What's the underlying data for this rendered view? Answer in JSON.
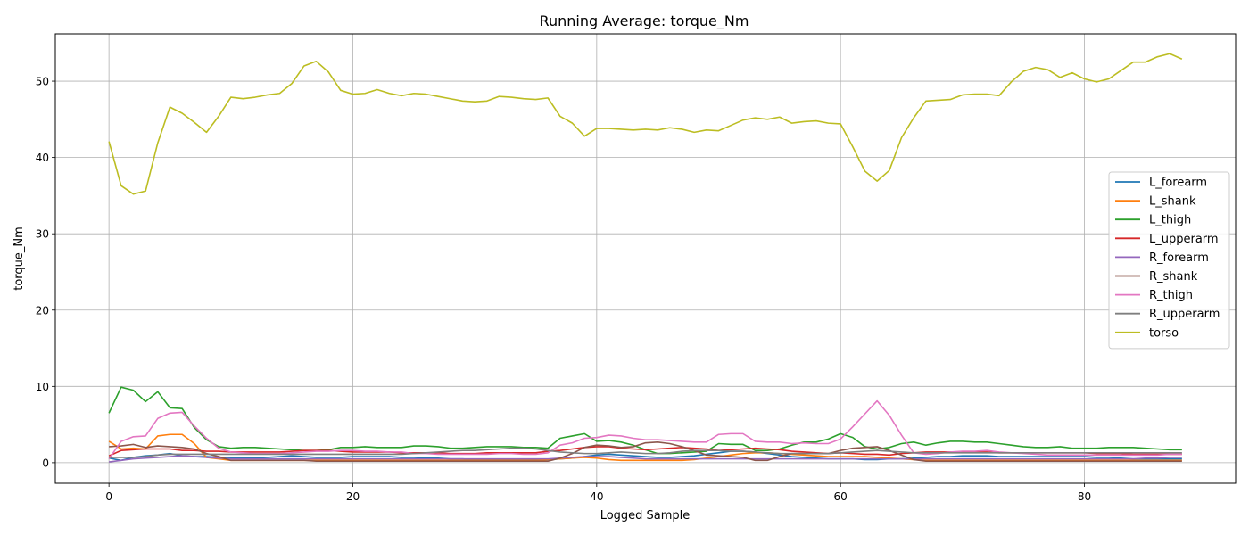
{
  "chart_data": {
    "type": "line",
    "title": "Running Average: torque_Nm",
    "xlabel": "Logged Sample",
    "ylabel": "torque_Nm",
    "xlim": [
      -4.4,
      92.4
    ],
    "ylim": [
      -2.7,
      56.2
    ],
    "xticks": [
      0,
      20,
      40,
      60,
      80
    ],
    "yticks": [
      0,
      10,
      20,
      30,
      40,
      50
    ],
    "grid": true,
    "legend_position": "center-right",
    "x": [
      0,
      1,
      2,
      3,
      4,
      5,
      6,
      7,
      8,
      9,
      10,
      11,
      12,
      13,
      14,
      15,
      16,
      17,
      18,
      19,
      20,
      21,
      22,
      23,
      24,
      25,
      26,
      27,
      28,
      29,
      30,
      31,
      32,
      33,
      34,
      35,
      36,
      37,
      38,
      39,
      40,
      41,
      42,
      43,
      44,
      45,
      46,
      47,
      48,
      49,
      50,
      51,
      52,
      53,
      54,
      55,
      56,
      57,
      58,
      59,
      60,
      61,
      62,
      63,
      64,
      65,
      66,
      67,
      68,
      69,
      70,
      71,
      72,
      73,
      74,
      75,
      76,
      77,
      78,
      79,
      80,
      81,
      82,
      83,
      84,
      85,
      86,
      87,
      88
    ],
    "series": [
      {
        "name": "L_forearm",
        "color": "#1f77b4",
        "values": [
          0.6,
          0.3,
          0.7,
          0.9,
          1.0,
          1.2,
          0.9,
          0.8,
          0.8,
          0.7,
          0.6,
          0.6,
          0.6,
          0.7,
          0.8,
          0.9,
          0.8,
          0.7,
          0.7,
          0.7,
          0.8,
          0.8,
          0.8,
          0.8,
          0.7,
          0.7,
          0.6,
          0.6,
          0.5,
          0.5,
          0.4,
          0.4,
          0.4,
          0.4,
          0.4,
          0.4,
          0.4,
          0.5,
          0.6,
          0.8,
          1.0,
          1.1,
          1.0,
          0.9,
          0.8,
          0.7,
          0.7,
          0.8,
          0.9,
          1.1,
          1.3,
          1.5,
          1.5,
          1.4,
          1.2,
          1.0,
          0.8,
          0.7,
          0.6,
          0.5,
          0.5,
          0.5,
          0.4,
          0.4,
          0.5,
          0.5,
          0.6,
          0.7,
          0.8,
          0.8,
          0.9,
          0.9,
          0.9,
          0.8,
          0.8,
          0.8,
          0.8,
          0.8,
          0.8,
          0.8,
          0.8,
          0.7,
          0.7,
          0.6,
          0.5,
          0.5,
          0.5,
          0.5,
          0.5
        ]
      },
      {
        "name": "L_shank",
        "color": "#ff7f0e",
        "values": [
          2.8,
          1.8,
          1.9,
          1.8,
          3.5,
          3.7,
          3.7,
          2.5,
          0.7,
          0.5,
          0.3,
          0.3,
          0.3,
          0.3,
          0.3,
          0.3,
          0.3,
          0.3,
          0.3,
          0.3,
          0.3,
          0.3,
          0.3,
          0.3,
          0.3,
          0.3,
          0.3,
          0.3,
          0.3,
          0.3,
          0.3,
          0.3,
          0.3,
          0.3,
          0.3,
          0.3,
          0.4,
          0.5,
          0.6,
          0.7,
          0.6,
          0.4,
          0.3,
          0.3,
          0.3,
          0.3,
          0.3,
          0.3,
          0.4,
          0.6,
          0.8,
          1.0,
          1.2,
          1.3,
          1.3,
          1.2,
          1.1,
          1.0,
          0.9,
          0.8,
          0.8,
          0.8,
          0.8,
          0.7,
          0.6,
          0.5,
          0.4,
          0.3,
          0.3,
          0.3,
          0.3,
          0.3,
          0.3,
          0.3,
          0.3,
          0.3,
          0.3,
          0.3,
          0.3,
          0.3,
          0.3,
          0.3,
          0.3,
          0.3,
          0.3,
          0.3,
          0.3,
          0.3,
          0.3
        ]
      },
      {
        "name": "L_thigh",
        "color": "#2ca02c",
        "values": [
          6.5,
          9.9,
          9.5,
          8.0,
          9.3,
          7.2,
          7.1,
          4.6,
          3.0,
          2.1,
          1.9,
          2.0,
          2.0,
          1.9,
          1.8,
          1.7,
          1.6,
          1.6,
          1.7,
          2.0,
          2.0,
          2.1,
          2.0,
          2.0,
          2.0,
          2.2,
          2.2,
          2.1,
          1.9,
          1.9,
          2.0,
          2.1,
          2.1,
          2.1,
          2.0,
          2.0,
          1.9,
          3.2,
          3.5,
          3.8,
          2.8,
          2.9,
          2.7,
          2.3,
          1.7,
          1.2,
          1.2,
          1.3,
          1.4,
          1.5,
          2.5,
          2.4,
          2.4,
          1.6,
          1.6,
          1.8,
          2.3,
          2.7,
          2.7,
          3.1,
          3.8,
          3.3,
          2.1,
          1.8,
          2.0,
          2.5,
          2.7,
          2.3,
          2.6,
          2.8,
          2.8,
          2.7,
          2.7,
          2.5,
          2.3,
          2.1,
          2.0,
          2.0,
          2.1,
          1.9,
          1.9,
          1.9,
          2.0,
          2.0,
          2.0,
          1.9,
          1.8,
          1.7,
          1.7
        ]
      },
      {
        "name": "L_upperarm",
        "color": "#d62728",
        "values": [
          0.9,
          1.6,
          1.7,
          1.8,
          1.8,
          1.8,
          1.6,
          1.6,
          1.5,
          1.5,
          1.4,
          1.4,
          1.4,
          1.4,
          1.4,
          1.5,
          1.6,
          1.6,
          1.6,
          1.5,
          1.4,
          1.4,
          1.4,
          1.4,
          1.3,
          1.3,
          1.3,
          1.3,
          1.2,
          1.2,
          1.2,
          1.3,
          1.3,
          1.3,
          1.3,
          1.3,
          1.5,
          1.6,
          1.8,
          2.0,
          2.1,
          2.1,
          1.9,
          1.8,
          1.7,
          1.8,
          1.9,
          2.0,
          1.9,
          1.8,
          1.6,
          1.7,
          1.8,
          1.9,
          1.8,
          1.7,
          1.5,
          1.4,
          1.3,
          1.2,
          1.3,
          1.2,
          1.1,
          1.1,
          1.0,
          1.2,
          1.3,
          1.4,
          1.4,
          1.4,
          1.4,
          1.4,
          1.4,
          1.3,
          1.3,
          1.3,
          1.3,
          1.3,
          1.3,
          1.3,
          1.3,
          1.2,
          1.2,
          1.2,
          1.1,
          1.1,
          1.1,
          1.1,
          1.1
        ]
      },
      {
        "name": "R_forearm",
        "color": "#9467bd",
        "values": [
          0.1,
          0.3,
          0.5,
          0.6,
          0.7,
          0.8,
          0.9,
          0.8,
          0.7,
          0.6,
          0.5,
          0.5,
          0.5,
          0.5,
          0.5,
          0.5,
          0.5,
          0.5,
          0.5,
          0.5,
          0.5,
          0.5,
          0.5,
          0.5,
          0.5,
          0.5,
          0.5,
          0.5,
          0.5,
          0.5,
          0.5,
          0.5,
          0.5,
          0.5,
          0.5,
          0.5,
          0.5,
          0.6,
          0.7,
          0.8,
          0.8,
          0.8,
          0.7,
          0.6,
          0.5,
          0.5,
          0.5,
          0.5,
          0.5,
          0.5,
          0.5,
          0.5,
          0.5,
          0.5,
          0.5,
          0.5,
          0.5,
          0.5,
          0.5,
          0.5,
          0.5,
          0.5,
          0.5,
          0.5,
          0.5,
          0.5,
          0.5,
          0.5,
          0.5,
          0.5,
          0.5,
          0.5,
          0.5,
          0.5,
          0.5,
          0.5,
          0.5,
          0.5,
          0.5,
          0.5,
          0.5,
          0.5,
          0.5,
          0.5,
          0.5,
          0.6,
          0.6,
          0.7,
          0.7
        ]
      },
      {
        "name": "R_shank",
        "color": "#8c564b",
        "values": [
          2.1,
          2.2,
          2.4,
          2.0,
          2.2,
          2.1,
          2.0,
          1.8,
          1.2,
          0.8,
          0.3,
          0.3,
          0.3,
          0.3,
          0.3,
          0.3,
          0.3,
          0.2,
          0.2,
          0.2,
          0.2,
          0.2,
          0.2,
          0.2,
          0.2,
          0.2,
          0.2,
          0.2,
          0.2,
          0.2,
          0.2,
          0.2,
          0.2,
          0.2,
          0.2,
          0.2,
          0.2,
          0.6,
          1.2,
          2.0,
          2.3,
          2.2,
          2.0,
          2.1,
          2.6,
          2.7,
          2.5,
          2.1,
          1.6,
          1.0,
          0.9,
          0.8,
          0.7,
          0.3,
          0.3,
          0.8,
          1.2,
          1.2,
          1.2,
          1.2,
          1.6,
          1.9,
          2.0,
          2.1,
          1.6,
          1.0,
          0.4,
          0.2,
          0.2,
          0.2,
          0.2,
          0.2,
          0.2,
          0.2,
          0.2,
          0.2,
          0.2,
          0.2,
          0.2,
          0.2,
          0.2,
          0.2,
          0.2,
          0.2,
          0.2,
          0.2,
          0.2,
          0.2,
          0.2
        ]
      },
      {
        "name": "R_thigh",
        "color": "#e377c2",
        "values": [
          0.5,
          2.8,
          3.4,
          3.5,
          5.8,
          6.5,
          6.6,
          4.8,
          3.2,
          1.9,
          1.4,
          1.3,
          1.2,
          1.2,
          1.2,
          1.3,
          1.4,
          1.5,
          1.5,
          1.6,
          1.6,
          1.5,
          1.5,
          1.4,
          1.4,
          1.2,
          1.2,
          1.1,
          1.1,
          1.1,
          1.1,
          1.1,
          1.2,
          1.2,
          1.1,
          1.1,
          1.3,
          2.3,
          2.6,
          3.2,
          3.3,
          3.6,
          3.5,
          3.2,
          3.0,
          3.0,
          2.9,
          2.8,
          2.7,
          2.7,
          3.7,
          3.8,
          3.8,
          2.8,
          2.7,
          2.7,
          2.5,
          2.6,
          2.5,
          2.5,
          3.1,
          4.7,
          6.4,
          8.1,
          6.2,
          3.6,
          1.3,
          1.1,
          1.2,
          1.4,
          1.5,
          1.5,
          1.6,
          1.4,
          1.3,
          1.2,
          1.1,
          1.0,
          1.0,
          1.0,
          1.0,
          1.0,
          1.0,
          1.0,
          1.0,
          1.0,
          1.0,
          1.1,
          1.1
        ]
      },
      {
        "name": "R_upperarm",
        "color": "#7f7f7f",
        "values": [
          0.7,
          0.7,
          0.7,
          0.8,
          1.0,
          1.1,
          1.1,
          1.1,
          1.1,
          1.1,
          1.1,
          1.1,
          1.1,
          1.1,
          1.1,
          1.1,
          1.1,
          1.1,
          1.1,
          1.1,
          1.1,
          1.1,
          1.1,
          1.1,
          1.1,
          1.2,
          1.3,
          1.4,
          1.5,
          1.6,
          1.6,
          1.7,
          1.8,
          1.9,
          1.9,
          1.8,
          1.6,
          1.4,
          1.3,
          1.2,
          1.2,
          1.3,
          1.4,
          1.3,
          1.2,
          1.2,
          1.3,
          1.5,
          1.6,
          1.6,
          1.6,
          1.5,
          1.5,
          1.4,
          1.3,
          1.2,
          1.2,
          1.2,
          1.2,
          1.2,
          1.3,
          1.4,
          1.5,
          1.6,
          1.5,
          1.4,
          1.3,
          1.3,
          1.3,
          1.3,
          1.3,
          1.3,
          1.3,
          1.3,
          1.3,
          1.3,
          1.3,
          1.3,
          1.3,
          1.3,
          1.3,
          1.3,
          1.3,
          1.3,
          1.3,
          1.3,
          1.3,
          1.3,
          1.3
        ]
      },
      {
        "name": "torso",
        "color": "#bcbd22",
        "values": [
          42.1,
          36.3,
          35.2,
          35.6,
          41.9,
          46.6,
          45.8,
          44.6,
          43.3,
          45.4,
          47.9,
          47.7,
          47.9,
          48.2,
          48.4,
          49.7,
          52.0,
          52.6,
          51.2,
          48.8,
          48.3,
          48.4,
          48.9,
          48.4,
          48.1,
          48.4,
          48.3,
          48.0,
          47.7,
          47.4,
          47.3,
          47.4,
          48.0,
          47.9,
          47.7,
          47.6,
          47.8,
          45.4,
          44.5,
          42.8,
          43.8,
          43.8,
          43.7,
          43.6,
          43.7,
          43.6,
          43.9,
          43.7,
          43.3,
          43.6,
          43.5,
          44.2,
          44.9,
          45.2,
          45.0,
          45.3,
          44.5,
          44.7,
          44.8,
          44.5,
          44.4,
          41.4,
          38.2,
          36.9,
          38.3,
          42.6,
          45.2,
          47.4,
          47.5,
          47.6,
          48.2,
          48.3,
          48.3,
          48.1,
          49.9,
          51.3,
          51.8,
          51.5,
          50.5,
          51.1,
          50.3,
          49.9,
          50.3,
          51.4,
          52.5,
          52.5,
          53.2,
          53.6,
          52.9
        ]
      }
    ]
  }
}
